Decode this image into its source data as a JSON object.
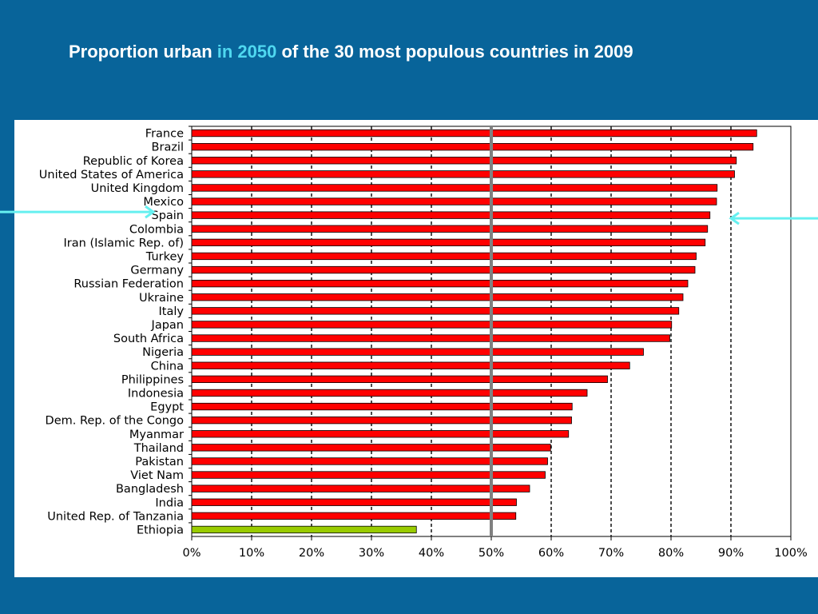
{
  "title": {
    "part1": "Proportion urban ",
    "highlight": "in 2050",
    "part2": " of the 30 most populous countries in 2009"
  },
  "colors": {
    "background": "#08649a",
    "highlight_text": "#4fd8f0",
    "bar": "#ff0000",
    "bar_highlight": "#99cc00",
    "reference_line": "#808080",
    "arrow": "#66f0f0"
  },
  "chart_data": {
    "type": "bar",
    "orientation": "horizontal",
    "categories": [
      "France",
      "Brazil",
      "Republic of Korea",
      "United States of America",
      "United Kingdom",
      "Mexico",
      "Spain",
      "Colombia",
      "Iran (Islamic Rep. of)",
      "Turkey",
      "Germany",
      "Russian Federation",
      "Ukraine",
      "Italy",
      "Japan",
      "South Africa",
      "Nigeria",
      "China",
      "Philippines",
      "Indonesia",
      "Egypt",
      "Dem. Rep. of the Congo",
      "Myanmar",
      "Thailand",
      "Pakistan",
      "Viet Nam",
      "Bangladesh",
      "India",
      "United Rep. of Tanzania",
      "Ethiopia"
    ],
    "values": [
      0.943,
      0.937,
      0.909,
      0.906,
      0.877,
      0.876,
      0.865,
      0.861,
      0.857,
      0.842,
      0.84,
      0.828,
      0.82,
      0.813,
      0.801,
      0.798,
      0.754,
      0.731,
      0.694,
      0.66,
      0.635,
      0.634,
      0.629,
      0.599,
      0.594,
      0.59,
      0.564,
      0.542,
      0.541,
      0.375
    ],
    "highlighted_category": "Ethiopia",
    "xlim": [
      0,
      1
    ],
    "xticks": [
      "0%",
      "10%",
      "20%",
      "30%",
      "40%",
      "50%",
      "60%",
      "70%",
      "80%",
      "90%",
      "100%"
    ],
    "reference_line": 0.5,
    "grid": "vertical dashed",
    "marked_category": "Spain",
    "marked_value": 0.9
  }
}
